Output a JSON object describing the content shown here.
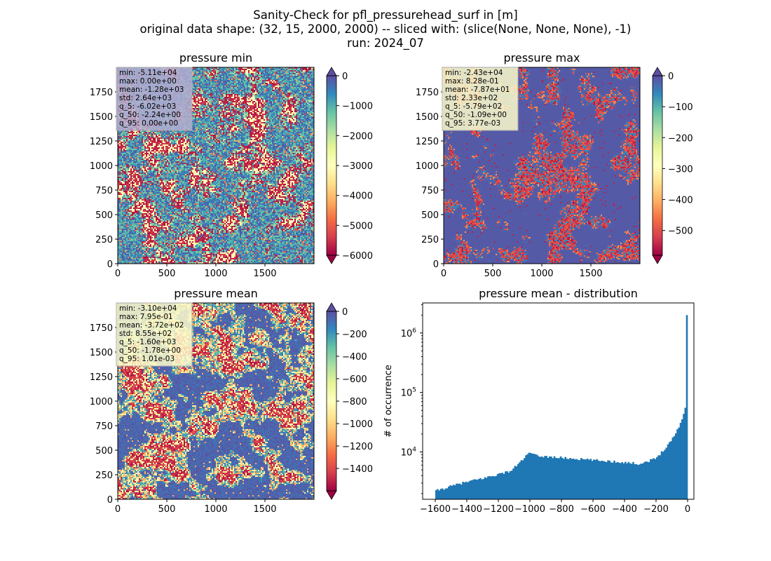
{
  "figure": {
    "title_lines": [
      "Sanity-Check for pfl_pressurehead_surf in [m]",
      "original data shape: (32, 15, 2000, 2000) -- sliced with: (slice(None, None, None), -1)",
      "run: 2024_07"
    ]
  },
  "chart_data": [
    {
      "type": "heatmap",
      "title": "pressure min",
      "xlim": [
        0,
        2000
      ],
      "ylim": [
        0,
        2000
      ],
      "x_ticks": [
        0,
        500,
        1000,
        1500
      ],
      "y_ticks": [
        0,
        250,
        500,
        750,
        1000,
        1250,
        1500,
        1750
      ],
      "colorbar": {
        "range": [
          -6000,
          0
        ],
        "ticks": [
          0,
          -1000,
          -2000,
          -3000,
          -4000,
          -5000,
          -6000
        ],
        "cmap": "Spectral",
        "extend": "both"
      },
      "stats": [
        "min: -5.11e+04",
        "max: 0.00e+00",
        "mean: -1.28e+03",
        "std: 2.64e+03",
        "q_5: -6.02e+03",
        "q_50: -2.24e+00",
        "q_95: 0.00e+00"
      ],
      "stats_box_color": "#b3aed1"
    },
    {
      "type": "heatmap",
      "title": "pressure max",
      "xlim": [
        0,
        2000
      ],
      "ylim": [
        0,
        2000
      ],
      "x_ticks": [
        0,
        500,
        1000,
        1500
      ],
      "y_ticks": [
        0,
        250,
        500,
        750,
        1000,
        1250,
        1500,
        1750
      ],
      "colorbar": {
        "range": [
          -580,
          0
        ],
        "ticks": [
          0,
          -100,
          -200,
          -300,
          -400,
          -500
        ],
        "cmap": "Spectral",
        "extend": "both"
      },
      "stats": [
        "min: -2.43e+04",
        "max: 8.28e-01",
        "mean: -7.87e+01",
        "std: 2.33e+02",
        "q_5: -5.79e+02",
        "q_50: -1.09e+00",
        "q_95: 3.77e-03"
      ],
      "stats_box_color": "#fdfbcb"
    },
    {
      "type": "heatmap",
      "title": "pressure mean",
      "xlim": [
        0,
        2000
      ],
      "ylim": [
        0,
        2000
      ],
      "x_ticks": [
        0,
        500,
        1000,
        1500
      ],
      "y_ticks": [
        0,
        250,
        500,
        750,
        1000,
        1250,
        1500,
        1750
      ],
      "colorbar": {
        "range": [
          -1600,
          0
        ],
        "ticks": [
          0,
          -200,
          -400,
          -600,
          -800,
          -1000,
          -1200,
          -1400
        ],
        "cmap": "Spectral",
        "extend": "both"
      },
      "stats": [
        "min: -3.10e+04",
        "max: 7.95e-01",
        "mean: -3.72e+02",
        "std: 8.55e+02",
        "q_5: -1.60e+03",
        "q_50: -1.78e+00",
        "q_95: 1.01e-03"
      ],
      "stats_box_color": "#fdfbcb"
    },
    {
      "type": "bar",
      "title": "pressure mean - distribution",
      "xlabel": "",
      "ylabel": "# of occurrence",
      "y_scale": "log",
      "xlim": [
        -1680,
        40
      ],
      "ylim": [
        1600,
        3200000
      ],
      "x_ticks": [
        -1600,
        -1400,
        -1200,
        -1000,
        -800,
        -600,
        -400,
        -200,
        0
      ],
      "x_tick_labels": [
        "−1600",
        "−1400",
        "−1200",
        "−1000",
        "−800",
        "−600",
        "−400",
        "−200",
        "0"
      ],
      "y_ticks": [
        10000,
        100000,
        1000000
      ],
      "y_tick_labels": [
        [
          "10",
          "4"
        ],
        [
          "10",
          "5"
        ],
        [
          "10",
          "6"
        ]
      ],
      "bar_color": "#1f77b4",
      "bins": [
        -1600,
        0
      ],
      "bin_edges_approx": [
        -1600,
        -1440,
        -1280,
        -1120,
        -1000,
        -960,
        -800,
        -600,
        -400,
        -300,
        -200,
        -150,
        -100,
        -60,
        -30,
        -15,
        -10,
        0
      ],
      "counts_approx": [
        2200,
        2950,
        3700,
        4800,
        9800,
        8600,
        8000,
        7300,
        6700,
        6300,
        7800,
        11000,
        16000,
        25000,
        38000,
        55000,
        50000,
        2000000
      ]
    }
  ]
}
